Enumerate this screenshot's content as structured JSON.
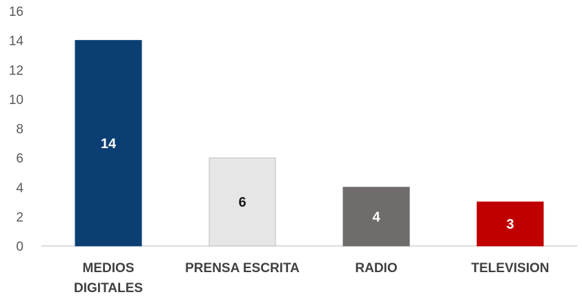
{
  "chart_data": {
    "type": "bar",
    "categories": [
      [
        "MEDIOS",
        "DIGITALES"
      ],
      [
        "PRENSA ESCRITA"
      ],
      [
        "RADIO"
      ],
      [
        "TELEVISION"
      ]
    ],
    "values": [
      14,
      6,
      4,
      3
    ],
    "value_labels": [
      "14",
      "6",
      "4",
      "3"
    ],
    "colors": [
      "#0b3f73",
      "#e6e6e6",
      "#6f6c6b",
      "#c00000"
    ],
    "label_colors": [
      "#ffffff",
      "#1a1a1a",
      "#ffffff",
      "#ffffff"
    ],
    "yticks": [
      "0",
      "2",
      "4",
      "6",
      "8",
      "10",
      "12",
      "14",
      "16"
    ],
    "ylim": [
      0,
      16
    ],
    "title": "",
    "xlabel": "",
    "ylabel": "",
    "grid": false,
    "legend": "none"
  }
}
